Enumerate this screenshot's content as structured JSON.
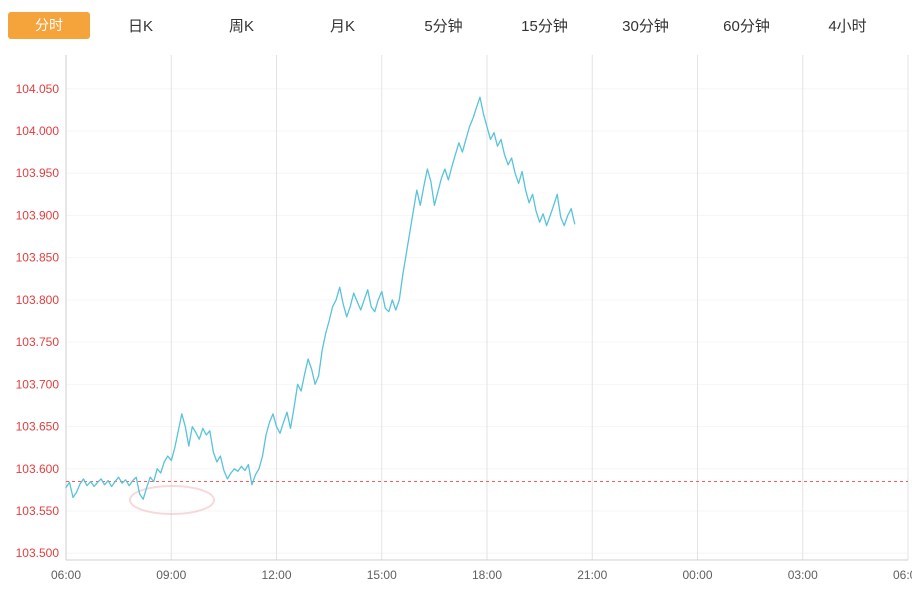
{
  "tabs": [
    {
      "label": "分时",
      "active": true
    },
    {
      "label": "日K",
      "active": false
    },
    {
      "label": "周K",
      "active": false
    },
    {
      "label": "月K",
      "active": false
    },
    {
      "label": "5分钟",
      "active": false
    },
    {
      "label": "15分钟",
      "active": false
    },
    {
      "label": "30分钟",
      "active": false
    },
    {
      "label": "60分钟",
      "active": false
    },
    {
      "label": "4小时",
      "active": false
    }
  ],
  "colors": {
    "active_tab_bg": "#f5a33b",
    "tab_text": "#333333",
    "y_axis_label": "#e23d3d",
    "x_axis_label": "#5f5f5f",
    "series_line": "#58c3da",
    "prev_close_line": "#ff5a5a",
    "grid_vertical": "#e3e3e3",
    "grid_horizontal": "#f6f6f6",
    "axis_line": "#cfcfcf",
    "watermark": "#f2b9bd"
  },
  "chart_data": {
    "type": "line",
    "title": "",
    "xlabel": "",
    "ylabel": "",
    "grid": true,
    "legend": "none",
    "ylim": [
      103.492,
      104.09
    ],
    "xlim_hours": [
      6,
      30
    ],
    "yticks": [
      "104.050",
      "104.000",
      "103.950",
      "103.900",
      "103.850",
      "103.800",
      "103.750",
      "103.700",
      "103.650",
      "103.600",
      "103.550",
      "103.500"
    ],
    "xticks": [
      "06:00",
      "09:00",
      "12:00",
      "15:00",
      "18:00",
      "21:00",
      "00:00",
      "03:00",
      "06:00"
    ],
    "xtick_hours": [
      6,
      9,
      12,
      15,
      18,
      21,
      24,
      27,
      30
    ],
    "prev_close": 103.585,
    "series": [
      {
        "name": "price",
        "x_hours_start": 6.0,
        "x_hours_step": 0.1,
        "y": [
          103.578,
          103.584,
          103.566,
          103.572,
          103.582,
          103.588,
          103.58,
          103.585,
          103.579,
          103.584,
          103.588,
          103.581,
          103.586,
          103.579,
          103.585,
          103.59,
          103.583,
          103.587,
          103.58,
          103.586,
          103.59,
          103.57,
          103.564,
          103.578,
          103.59,
          103.585,
          103.6,
          103.595,
          103.608,
          103.615,
          103.61,
          103.625,
          103.645,
          103.665,
          103.65,
          103.627,
          103.65,
          103.643,
          103.635,
          103.648,
          103.64,
          103.645,
          103.62,
          103.608,
          103.615,
          103.598,
          103.588,
          103.595,
          103.6,
          103.597,
          103.603,
          103.598,
          103.605,
          103.581,
          103.593,
          103.6,
          103.615,
          103.64,
          103.655,
          103.665,
          103.65,
          103.642,
          103.655,
          103.667,
          103.648,
          103.672,
          103.7,
          103.692,
          103.712,
          103.73,
          103.718,
          103.7,
          103.71,
          103.74,
          103.76,
          103.775,
          103.792,
          103.8,
          103.815,
          103.795,
          103.78,
          103.792,
          103.808,
          103.798,
          103.788,
          103.8,
          103.812,
          103.792,
          103.786,
          103.8,
          103.81,
          103.79,
          103.786,
          103.8,
          103.788,
          103.8,
          103.83,
          103.855,
          103.88,
          103.905,
          103.93,
          103.912,
          103.935,
          103.955,
          103.94,
          103.912,
          103.928,
          103.944,
          103.955,
          103.942,
          103.958,
          103.972,
          103.986,
          103.975,
          103.99,
          104.005,
          104.015,
          104.028,
          104.04,
          104.02,
          104.005,
          103.99,
          103.998,
          103.982,
          103.99,
          103.972,
          103.96,
          103.968,
          103.95,
          103.938,
          103.952,
          103.93,
          103.915,
          103.925,
          103.905,
          103.892,
          103.902,
          103.888,
          103.9,
          103.912,
          103.925,
          103.898,
          103.888,
          103.9,
          103.908,
          103.89
        ]
      }
    ]
  }
}
